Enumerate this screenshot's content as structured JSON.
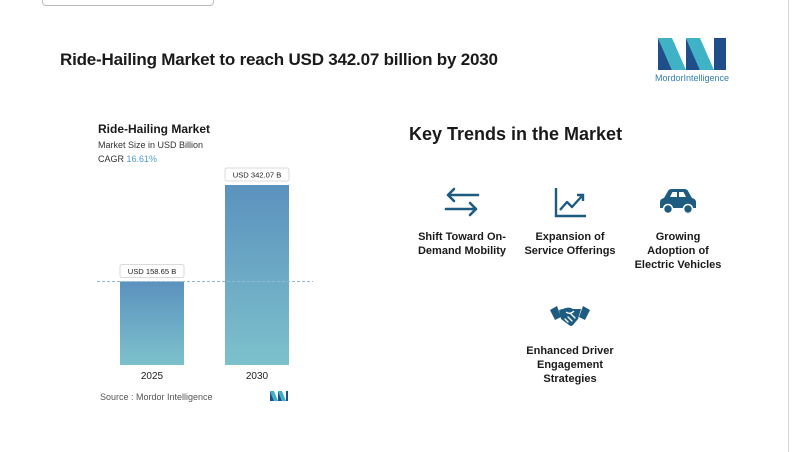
{
  "headline": "Ride-Hailing Market to reach USD 342.07 billion by 2030",
  "brand": {
    "word_a": "Mordor",
    "word_b": "Intelligence"
  },
  "chart_data": {
    "type": "bar",
    "title": "Ride-Hailing Market",
    "subtitle": "Market Size in USD Billion",
    "cagr_label": "CAGR",
    "cagr_value": "16.61%",
    "categories": [
      "2025",
      "2030"
    ],
    "values": [
      158.65,
      342.07
    ],
    "data_labels": [
      "USD 158.65 B",
      "USD 342.07 B"
    ],
    "ylim": [
      0,
      380
    ],
    "reference_line": 158.65,
    "colors": {
      "bar_top": "#5b92be",
      "bar_bottom": "#7dc1cc",
      "ref_line": "#8fb8d6"
    }
  },
  "source": "Source : Mordor Intelligence",
  "trends_title": "Key Trends in the Market",
  "trends": [
    {
      "icon": "arrows-exchange-icon",
      "label": [
        "Shift Toward On-",
        "Demand Mobility"
      ]
    },
    {
      "icon": "line-chart-icon",
      "label": [
        "Expansion of",
        "Service Offerings"
      ]
    },
    {
      "icon": "car-icon",
      "label": [
        "Growing",
        "Adoption of",
        "Electric Vehicles"
      ]
    },
    {
      "icon": "handshake-icon",
      "label": [
        "Enhanced Driver",
        "Engagement",
        "Strategies"
      ]
    }
  ],
  "icon_color": "#1d5c80"
}
